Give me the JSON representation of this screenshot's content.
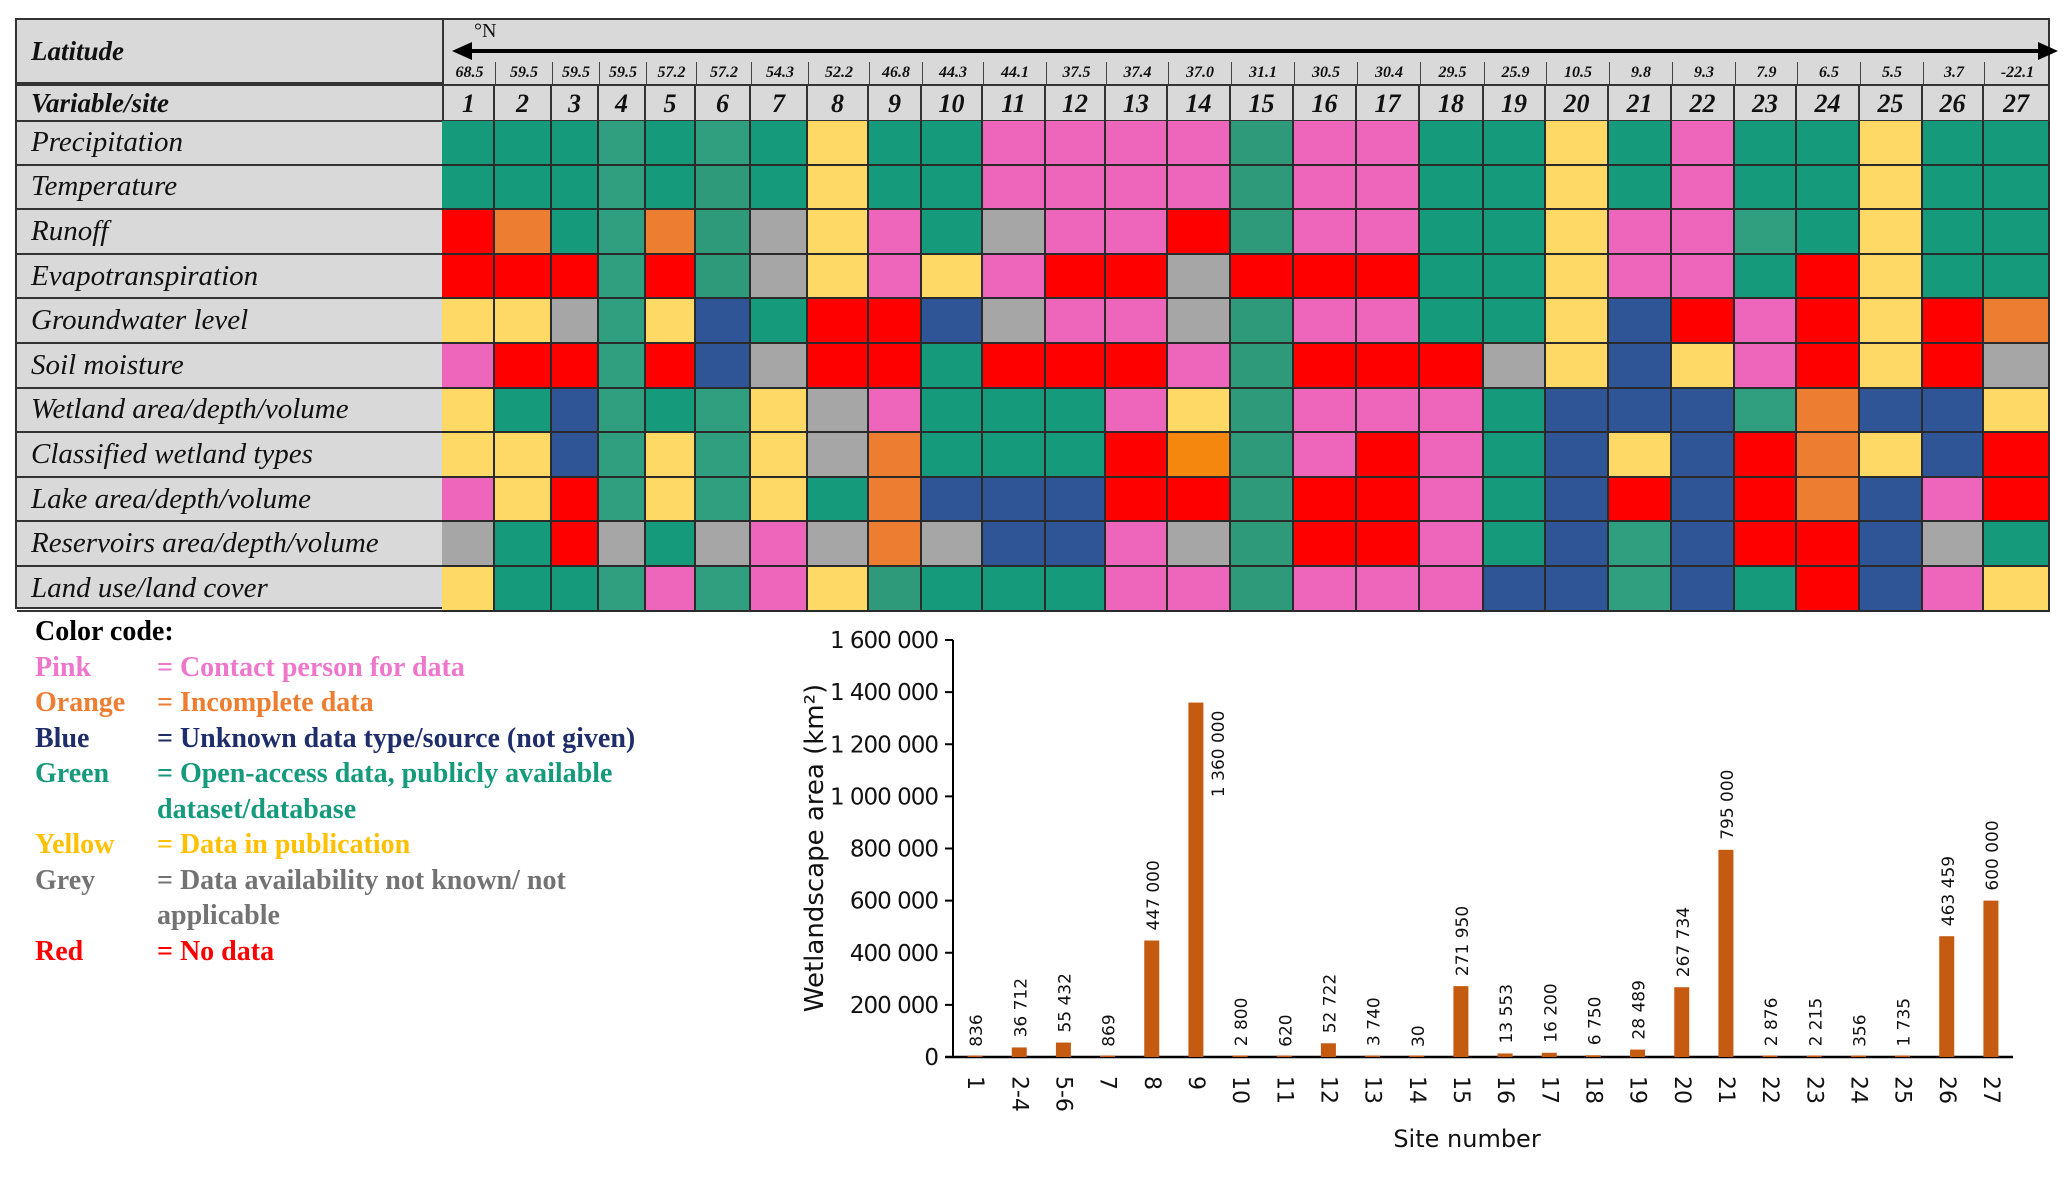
{
  "table": {
    "latitude_label": "Latitude",
    "direction_label": "°N",
    "variable_site_label": "Variable/site",
    "sites": [
      "1",
      "2",
      "3",
      "4",
      "5",
      "6",
      "7",
      "8",
      "9",
      "10",
      "11",
      "12",
      "13",
      "14",
      "15",
      "16",
      "17",
      "18",
      "19",
      "20",
      "21",
      "22",
      "23",
      "24",
      "25",
      "26",
      "27"
    ],
    "latitudes": [
      "68.5",
      "59.5",
      "59.5",
      "59.5",
      "57.2",
      "57.2",
      "54.3",
      "52.2",
      "46.8",
      "44.3",
      "44.1",
      "37.5",
      "37.4",
      "37.0",
      "31.1",
      "30.5",
      "30.4",
      "29.5",
      "25.9",
      "10.5",
      "9.8",
      "9.3",
      "7.9",
      "6.5",
      "5.5",
      "3.7",
      "-22.1"
    ],
    "rows": [
      {
        "variable": "Precipitation",
        "codes": [
          "G",
          "G",
          "G",
          "G2",
          "G",
          "G2",
          "G",
          "Y",
          "G",
          "G",
          "P",
          "P",
          "P",
          "P",
          "G3",
          "P",
          "P",
          "G",
          "G",
          "Y",
          "G",
          "P",
          "G",
          "G",
          "Y",
          "G",
          "G"
        ]
      },
      {
        "variable": "Temperature",
        "codes": [
          "G",
          "G",
          "G",
          "G2",
          "G",
          "G3",
          "G",
          "Y",
          "G",
          "G",
          "P",
          "P",
          "P",
          "P",
          "G3",
          "P",
          "P",
          "G",
          "G",
          "Y",
          "G",
          "P",
          "G",
          "G",
          "Y",
          "G",
          "G"
        ]
      },
      {
        "variable": "Runoff",
        "codes": [
          "R",
          "O",
          "G",
          "G2",
          "O",
          "G3",
          "X",
          "Y",
          "P",
          "G",
          "X",
          "P",
          "P",
          "R",
          "G3",
          "P",
          "P",
          "G",
          "G",
          "Y",
          "P",
          "P",
          "G2",
          "G",
          "Y",
          "G",
          "G"
        ]
      },
      {
        "variable": "Evapotranspiration",
        "codes": [
          "R",
          "R",
          "R",
          "G2",
          "R",
          "G3",
          "X",
          "Y",
          "P",
          "Y",
          "P",
          "R",
          "R",
          "X",
          "R",
          "R",
          "R",
          "G",
          "G",
          "Y",
          "P",
          "P",
          "G",
          "R",
          "Y",
          "G",
          "G"
        ]
      },
      {
        "variable": "Groundwater level",
        "codes": [
          "Y",
          "Y",
          "X",
          "G2",
          "Y",
          "B",
          "G",
          "R",
          "R",
          "B",
          "X",
          "P",
          "P",
          "X",
          "G3",
          "P",
          "P",
          "G",
          "G",
          "Y",
          "B",
          "R",
          "P",
          "R",
          "Y",
          "R",
          "O"
        ]
      },
      {
        "variable": "Soil moisture",
        "codes": [
          "P",
          "R",
          "R",
          "G2",
          "R",
          "B",
          "X",
          "R",
          "R",
          "G",
          "R",
          "R",
          "R",
          "P",
          "G3",
          "R",
          "R",
          "R",
          "X",
          "Y",
          "B",
          "Y",
          "P",
          "R",
          "Y",
          "R",
          "X"
        ]
      },
      {
        "variable": "Wetland area/depth/volume",
        "codes": [
          "Y",
          "G",
          "B",
          "G2",
          "G",
          "G2",
          "Y",
          "X",
          "P",
          "G",
          "G",
          "G",
          "P",
          "Y",
          "G3",
          "P",
          "P",
          "P",
          "G",
          "B",
          "B",
          "B",
          "G2",
          "O",
          "B",
          "B",
          "Y"
        ]
      },
      {
        "variable": "Classified wetland types",
        "codes": [
          "Y",
          "Y",
          "B",
          "G2",
          "Y",
          "G2",
          "Y",
          "X",
          "O",
          "G",
          "G",
          "G",
          "R",
          "O2",
          "G3",
          "P",
          "R",
          "P",
          "G",
          "B",
          "Y",
          "B",
          "R",
          "O",
          "Y",
          "B",
          "R"
        ]
      },
      {
        "variable": "Lake area/depth/volume",
        "codes": [
          "P",
          "Y",
          "R",
          "G2",
          "Y",
          "G2",
          "Y",
          "G",
          "O",
          "B",
          "B",
          "B",
          "R",
          "R",
          "G3",
          "R",
          "R",
          "P",
          "G",
          "B",
          "R",
          "B",
          "R",
          "O",
          "B",
          "P",
          "R"
        ]
      },
      {
        "variable": "Reservoirs area/depth/volume",
        "codes": [
          "X",
          "G",
          "R",
          "X",
          "G",
          "X",
          "P",
          "X",
          "O",
          "X",
          "B",
          "B",
          "P",
          "X",
          "G3",
          "R",
          "R",
          "P",
          "G",
          "B",
          "G2",
          "B",
          "R",
          "R",
          "B",
          "X",
          "G"
        ]
      },
      {
        "variable": "Land use/land cover",
        "codes": [
          "Y",
          "G",
          "G",
          "G2",
          "P",
          "G2",
          "P",
          "Y",
          "G3",
          "G",
          "G",
          "G",
          "P",
          "P",
          "G3",
          "P",
          "P",
          "P",
          "B",
          "B",
          "G2",
          "B",
          "G",
          "R",
          "B",
          "P",
          "Y"
        ]
      }
    ]
  },
  "palette": {
    "G": "#159a7c",
    "G2": "#2f9f80",
    "G3": "#2e9a7a",
    "Y": "#ffd966",
    "P": "#ee66bb",
    "R": "#ff0000",
    "O": "#ed7d31",
    "O2": "#f5870f",
    "B": "#2f5597",
    "X": "#a6a6a6"
  },
  "legend": {
    "title": "Color code:",
    "items": [
      {
        "name": "Pink",
        "desc": "= Contact person for data",
        "color": "#ee77cc"
      },
      {
        "name": "Orange",
        "desc": "= Incomplete data",
        "color": "#ed7d31"
      },
      {
        "name": "Blue",
        "desc": "= Unknown data type/source (not given)",
        "color": "#1f2d6b"
      },
      {
        "name": "Green",
        "desc": "= Open-access data, publicly available dataset/database",
        "color": "#159a7c"
      },
      {
        "name": "Yellow",
        "desc": "= Data in publication",
        "color": "#ffc000"
      },
      {
        "name": "Grey",
        "desc": "= Data availability not known/ not applicable",
        "color": "#737373"
      },
      {
        "name": "Red",
        "desc": "= No data",
        "color": "#ff0000"
      }
    ]
  },
  "chart_data": {
    "type": "bar",
    "title": "",
    "xlabel": "Site number",
    "ylabel": "Wetlandscape area (km²)",
    "ylim": [
      0,
      1600000
    ],
    "yticks": [
      0,
      200000,
      400000,
      600000,
      800000,
      1000000,
      1200000,
      1400000,
      1600000
    ],
    "ytick_labels": [
      "0",
      "200 000",
      "400 000",
      "600 000",
      "800 000",
      "1 000 000",
      "1 200 000",
      "1 400 000",
      "1 600 000"
    ],
    "grid": false,
    "bar_color": "#c55a11",
    "categories": [
      "1",
      "2-4",
      "5-6",
      "7",
      "8",
      "9",
      "10",
      "11",
      "12",
      "13",
      "14",
      "15",
      "16",
      "17",
      "18",
      "19",
      "20",
      "21",
      "22",
      "23",
      "24",
      "25",
      "26",
      "27"
    ],
    "values": [
      836,
      36712,
      55432,
      869,
      447000,
      1360000,
      2800,
      620,
      52722,
      3740,
      30,
      271950,
      13553,
      16200,
      6750,
      28489,
      267734,
      795000,
      2876,
      2215,
      356,
      1735,
      463459,
      600000
    ],
    "value_labels": [
      "836",
      "36 712",
      "55 432",
      "869",
      "447 000",
      "1 360 000",
      "2 800",
      "620",
      "52 722",
      "3 740",
      "30",
      "271 950",
      "13 553",
      "16 200",
      "6 750",
      "28 489",
      "267 734",
      "795 000",
      "2 876",
      "2 215",
      "356",
      "1 735",
      "463 459",
      "600 000"
    ]
  }
}
